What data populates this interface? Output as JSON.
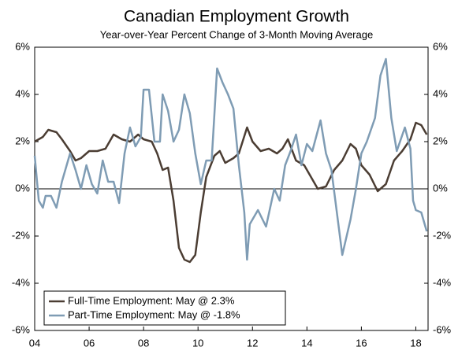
{
  "chart_data": {
    "type": "line",
    "title": "Canadian Employment Growth",
    "subtitle": "Year-over-Year Percent Change of 3-Month Moving Average",
    "xlim": [
      2004,
      2018.45
    ],
    "xticks": [
      {
        "value": 2004,
        "label": "04"
      },
      {
        "value": 2006,
        "label": "06"
      },
      {
        "value": 2008,
        "label": "08"
      },
      {
        "value": 2010,
        "label": "10"
      },
      {
        "value": 2012,
        "label": "12"
      },
      {
        "value": 2014,
        "label": "14"
      },
      {
        "value": 2016,
        "label": "16"
      },
      {
        "value": 2018,
        "label": "18"
      }
    ],
    "ylim": [
      -6,
      6
    ],
    "yticks": [
      {
        "value": -6,
        "label": "-6%"
      },
      {
        "value": -4,
        "label": "-4%"
      },
      {
        "value": -2,
        "label": "-2%"
      },
      {
        "value": 0,
        "label": "0%"
      },
      {
        "value": 2,
        "label": "2%"
      },
      {
        "value": 4,
        "label": "4%"
      },
      {
        "value": 6,
        "label": "6%"
      }
    ],
    "legend": "lower-left",
    "series": [
      {
        "name": "Full-Time Employment: May @ 2.3%",
        "color": "#4b3d33",
        "x": [
          2004.0,
          2004.3,
          2004.5,
          2004.8,
          2005.0,
          2005.3,
          2005.5,
          2005.7,
          2006.0,
          2006.3,
          2006.6,
          2006.9,
          2007.2,
          2007.5,
          2007.8,
          2008.0,
          2008.3,
          2008.5,
          2008.7,
          2008.9,
          2009.1,
          2009.3,
          2009.5,
          2009.7,
          2009.9,
          2010.1,
          2010.3,
          2010.6,
          2010.8,
          2011.0,
          2011.3,
          2011.5,
          2011.8,
          2012.0,
          2012.3,
          2012.6,
          2012.9,
          2013.1,
          2013.3,
          2013.6,
          2013.9,
          2014.1,
          2014.4,
          2014.7,
          2015.0,
          2015.3,
          2015.6,
          2015.8,
          2016.0,
          2016.3,
          2016.6,
          2016.9,
          2017.2,
          2017.5,
          2017.8,
          2018.0,
          2018.2,
          2018.4
        ],
        "values": [
          2.0,
          2.2,
          2.5,
          2.4,
          2.1,
          1.6,
          1.2,
          1.3,
          1.6,
          1.6,
          1.7,
          2.3,
          2.1,
          2.0,
          2.3,
          2.1,
          2.0,
          1.5,
          0.8,
          0.9,
          -0.5,
          -2.5,
          -3.0,
          -3.1,
          -2.8,
          -1.0,
          0.5,
          1.4,
          1.6,
          1.1,
          1.3,
          1.5,
          2.6,
          2.0,
          1.6,
          1.7,
          1.5,
          1.7,
          2.1,
          1.2,
          1.0,
          0.6,
          0.0,
          0.1,
          0.8,
          1.2,
          1.9,
          1.7,
          1.0,
          0.6,
          -0.1,
          0.2,
          1.2,
          1.6,
          2.1,
          2.8,
          2.7,
          2.3
        ]
      },
      {
        "name": "Part-Time Employment: May @ -1.8%",
        "color": "#7f9cb4",
        "x": [
          2004.0,
          2004.15,
          2004.3,
          2004.4,
          2004.6,
          2004.8,
          2005.0,
          2005.3,
          2005.5,
          2005.7,
          2005.9,
          2006.1,
          2006.3,
          2006.5,
          2006.7,
          2006.9,
          2007.1,
          2007.3,
          2007.5,
          2007.7,
          2007.9,
          2008.0,
          2008.2,
          2008.4,
          2008.6,
          2008.7,
          2008.9,
          2009.1,
          2009.3,
          2009.5,
          2009.7,
          2009.9,
          2010.1,
          2010.3,
          2010.5,
          2010.7,
          2010.9,
          2011.1,
          2011.3,
          2011.5,
          2011.7,
          2011.8,
          2011.9,
          2012.2,
          2012.5,
          2012.8,
          2013.0,
          2013.2,
          2013.4,
          2013.6,
          2013.8,
          2014.0,
          2014.2,
          2014.5,
          2014.7,
          2014.9,
          2015.1,
          2015.3,
          2015.6,
          2015.8,
          2016.0,
          2016.2,
          2016.5,
          2016.7,
          2016.9,
          2017.1,
          2017.3,
          2017.6,
          2017.8,
          2017.9,
          2018.0,
          2018.2,
          2018.4
        ],
        "values": [
          1.4,
          -0.5,
          -0.8,
          -0.3,
          -0.3,
          -0.8,
          0.3,
          1.5,
          0.8,
          0.0,
          1.0,
          0.2,
          -0.2,
          1.2,
          0.3,
          0.3,
          -0.6,
          1.5,
          2.6,
          1.8,
          2.2,
          4.2,
          4.2,
          2.0,
          2.0,
          4.0,
          3.3,
          2.0,
          2.5,
          4.0,
          3.2,
          1.5,
          0.2,
          1.2,
          1.2,
          5.1,
          4.5,
          4.0,
          3.4,
          1.0,
          -1.0,
          -3.0,
          -1.5,
          -0.9,
          -1.6,
          0.0,
          -0.5,
          1.0,
          1.6,
          2.3,
          1.0,
          1.9,
          1.6,
          2.9,
          1.5,
          0.8,
          -1.0,
          -2.8,
          -1.3,
          0.0,
          1.5,
          2.0,
          3.0,
          4.8,
          5.5,
          3.0,
          1.6,
          2.6,
          1.7,
          -0.5,
          -0.9,
          -1.0,
          -1.8
        ]
      }
    ]
  }
}
